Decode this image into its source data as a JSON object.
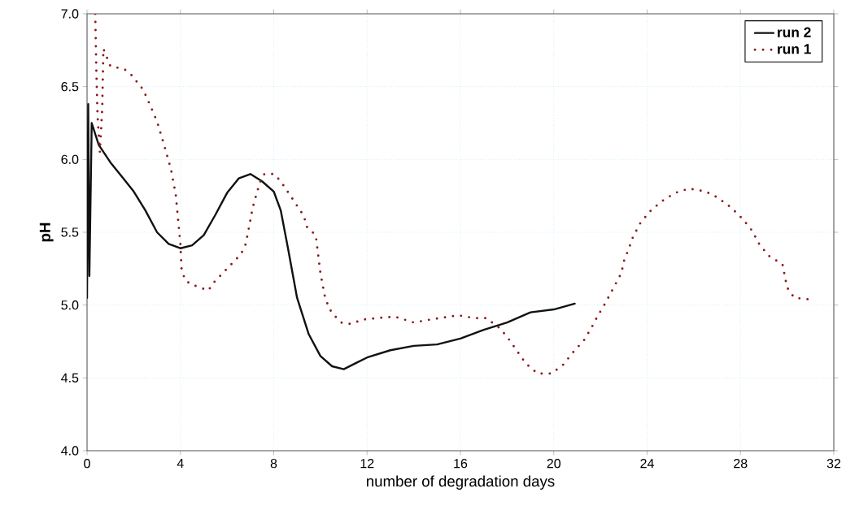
{
  "chart_data": {
    "type": "line",
    "xlabel": "number of degradation days",
    "ylabel": "pH",
    "xlim": [
      0,
      32
    ],
    "xticks": [
      0,
      4,
      8,
      12,
      16,
      20,
      24,
      28,
      32
    ],
    "ylim": [
      4.0,
      7.0
    ],
    "yticks": [
      {
        "value": 4.0,
        "label": "4.0"
      },
      {
        "value": 4.5,
        "label": "4.5"
      },
      {
        "value": 5.0,
        "label": "5.0"
      },
      {
        "value": 5.5,
        "label": "5.5"
      },
      {
        "value": 6.0,
        "label": "6.0"
      },
      {
        "value": 6.5,
        "label": "6.5"
      },
      {
        "value": 7.0,
        "label": "7.0"
      }
    ],
    "grid": true,
    "legend": "top right",
    "marker": "none",
    "series": [
      {
        "name": "run 2",
        "color": "#111111",
        "line_style": "solid",
        "x": [
          0,
          0.05,
          0.1,
          0.2,
          0.5,
          1,
          1.5,
          2,
          2.5,
          3,
          3.5,
          4,
          4.5,
          5,
          5.5,
          6,
          6.5,
          7,
          7.5,
          8,
          8.3,
          8.6,
          9,
          9.5,
          10,
          10.5,
          11,
          11.5,
          12,
          13,
          14,
          15,
          16,
          17,
          18,
          19,
          20,
          20.9
        ],
        "values": [
          5.05,
          6.38,
          5.2,
          6.25,
          6.1,
          5.98,
          5.88,
          5.78,
          5.65,
          5.5,
          5.42,
          5.39,
          5.41,
          5.48,
          5.62,
          5.77,
          5.87,
          5.9,
          5.85,
          5.78,
          5.65,
          5.4,
          5.05,
          4.8,
          4.65,
          4.58,
          4.56,
          4.6,
          4.64,
          4.69,
          4.72,
          4.73,
          4.77,
          4.83,
          4.88,
          4.95,
          4.97,
          5.01
        ]
      },
      {
        "name": "run 1",
        "color": "#8b1a1a",
        "line_style": "dotted",
        "x": [
          0.35,
          0.4,
          0.45,
          0.55,
          0.65,
          0.7,
          1.0,
          1.6,
          1.9,
          2.4,
          2.6,
          3.0,
          3.3,
          3.6,
          3.8,
          3.9,
          4.0,
          4.05,
          4.2,
          4.5,
          5.2,
          5.4,
          6.0,
          6.6,
          6.8,
          6.9,
          7.1,
          7.4,
          7.6,
          8.0,
          8.3,
          8.8,
          9.3,
          9.4,
          9.8,
          10.0,
          10.2,
          10.4,
          10.7,
          10.9,
          11.3,
          11.8,
          12.4,
          13.2,
          14.0,
          14.7,
          15.9,
          16.6,
          17.1,
          17.7,
          18.1,
          18.4,
          18.8,
          19.3,
          19.9,
          20.4,
          20.8,
          21.3,
          21.6,
          21.9,
          22.2,
          22.5,
          22.9,
          23.0,
          23.2,
          23.4,
          23.7,
          24.1,
          24.6,
          25.2,
          25.8,
          26.5,
          27.0,
          27.6,
          28.1,
          28.5,
          28.8,
          29.2,
          29.8,
          29.9,
          30.0,
          30.3,
          30.9
        ],
        "values": [
          7.0,
          6.6,
          6.3,
          6.05,
          6.35,
          6.76,
          6.64,
          6.62,
          6.58,
          6.48,
          6.41,
          6.26,
          6.1,
          5.93,
          5.76,
          5.59,
          5.42,
          5.25,
          5.17,
          5.14,
          5.1,
          5.15,
          5.25,
          5.35,
          5.42,
          5.5,
          5.67,
          5.84,
          5.9,
          5.9,
          5.85,
          5.73,
          5.61,
          5.54,
          5.48,
          5.22,
          5.05,
          4.97,
          4.91,
          4.88,
          4.87,
          4.9,
          4.91,
          4.92,
          4.88,
          4.9,
          4.93,
          4.91,
          4.91,
          4.84,
          4.76,
          4.69,
          4.6,
          4.53,
          4.53,
          4.59,
          4.67,
          4.76,
          4.84,
          4.93,
          5.01,
          5.1,
          5.22,
          5.3,
          5.38,
          5.47,
          5.56,
          5.64,
          5.71,
          5.77,
          5.8,
          5.78,
          5.74,
          5.67,
          5.59,
          5.51,
          5.42,
          5.34,
          5.28,
          5.2,
          5.12,
          5.05,
          5.04
        ]
      }
    ]
  }
}
